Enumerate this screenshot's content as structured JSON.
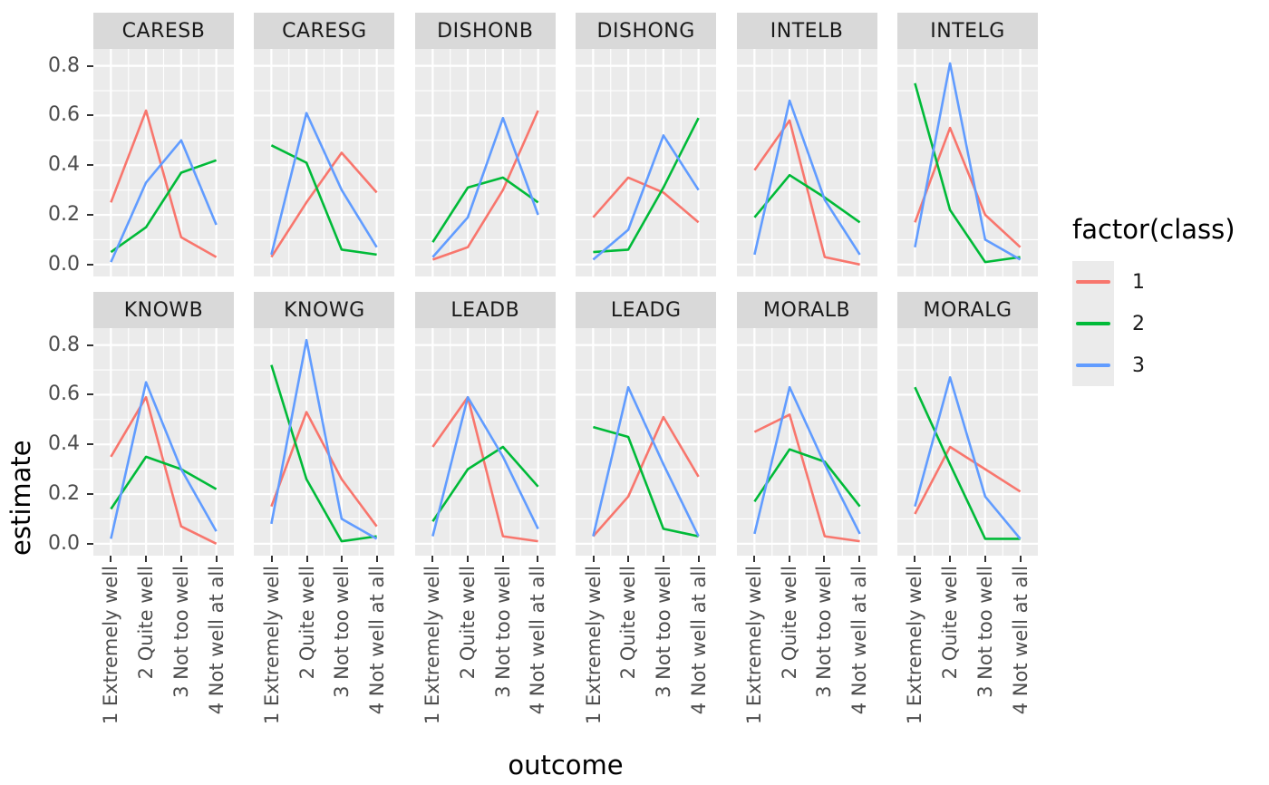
{
  "chart_data": {
    "type": "line",
    "title": "",
    "xlabel": "outcome",
    "ylabel": "estimate",
    "facet_grid": {
      "rows": 2,
      "cols": 6
    },
    "categories": [
      "1 Extremely well",
      "2 Quite well",
      "3 Not too well",
      "4 Not well at all"
    ],
    "yticks": [
      0.0,
      0.2,
      0.4,
      0.6,
      0.8
    ],
    "ytick_labels": [
      "0.0",
      "0.2",
      "0.4",
      "0.6",
      "0.8"
    ],
    "ylim": [
      -0.048,
      0.868
    ],
    "grid": true,
    "series": [
      {
        "name": "1",
        "color": "#F8766D"
      },
      {
        "name": "2",
        "color": "#00BA38"
      },
      {
        "name": "3",
        "color": "#619CFF"
      }
    ],
    "legend": {
      "title": "factor(class)",
      "position": "right",
      "entries": [
        {
          "label": "1",
          "color": "#F8766D"
        },
        {
          "label": "2",
          "color": "#00BA38"
        },
        {
          "label": "3",
          "color": "#619CFF"
        }
      ]
    },
    "facets": [
      {
        "name": "CARESB",
        "values": {
          "1": [
            0.25,
            0.62,
            0.11,
            0.03
          ],
          "2": [
            0.05,
            0.15,
            0.37,
            0.42
          ],
          "3": [
            0.01,
            0.33,
            0.5,
            0.16
          ]
        }
      },
      {
        "name": "CARESG",
        "values": {
          "1": [
            0.03,
            0.25,
            0.45,
            0.29
          ],
          "2": [
            0.48,
            0.41,
            0.06,
            0.04
          ],
          "3": [
            0.04,
            0.61,
            0.3,
            0.07
          ]
        }
      },
      {
        "name": "DISHONB",
        "values": {
          "1": [
            0.02,
            0.07,
            0.3,
            0.62
          ],
          "2": [
            0.09,
            0.31,
            0.35,
            0.25
          ],
          "3": [
            0.03,
            0.19,
            0.59,
            0.2
          ]
        }
      },
      {
        "name": "DISHONG",
        "values": {
          "1": [
            0.19,
            0.35,
            0.29,
            0.17
          ],
          "2": [
            0.05,
            0.06,
            0.31,
            0.59
          ],
          "3": [
            0.02,
            0.14,
            0.52,
            0.3
          ]
        }
      },
      {
        "name": "INTELB",
        "values": {
          "1": [
            0.38,
            0.58,
            0.03,
            0.0
          ],
          "2": [
            0.19,
            0.36,
            0.27,
            0.17
          ],
          "3": [
            0.04,
            0.66,
            0.26,
            0.04
          ]
        }
      },
      {
        "name": "INTELG",
        "values": {
          "1": [
            0.17,
            0.55,
            0.2,
            0.07
          ],
          "2": [
            0.73,
            0.22,
            0.01,
            0.03
          ],
          "3": [
            0.07,
            0.81,
            0.1,
            0.02
          ]
        }
      },
      {
        "name": "KNOWB",
        "values": {
          "1": [
            0.35,
            0.59,
            0.07,
            0.0
          ],
          "2": [
            0.14,
            0.35,
            0.3,
            0.22
          ],
          "3": [
            0.02,
            0.65,
            0.3,
            0.05
          ]
        }
      },
      {
        "name": "KNOWG",
        "values": {
          "1": [
            0.15,
            0.53,
            0.26,
            0.07
          ],
          "2": [
            0.72,
            0.26,
            0.01,
            0.03
          ],
          "3": [
            0.08,
            0.82,
            0.1,
            0.02
          ]
        }
      },
      {
        "name": "LEADB",
        "values": {
          "1": [
            0.39,
            0.59,
            0.03,
            0.01
          ],
          "2": [
            0.09,
            0.3,
            0.39,
            0.23
          ],
          "3": [
            0.03,
            0.59,
            0.35,
            0.06
          ]
        }
      },
      {
        "name": "LEADG",
        "values": {
          "1": [
            0.03,
            0.19,
            0.51,
            0.27
          ],
          "2": [
            0.47,
            0.43,
            0.06,
            0.03
          ],
          "3": [
            0.03,
            0.63,
            0.32,
            0.03
          ]
        }
      },
      {
        "name": "MORALB",
        "values": {
          "1": [
            0.45,
            0.52,
            0.03,
            0.01
          ],
          "2": [
            0.17,
            0.38,
            0.33,
            0.15
          ],
          "3": [
            0.04,
            0.63,
            0.32,
            0.04
          ]
        }
      },
      {
        "name": "MORALG",
        "values": {
          "1": [
            0.12,
            0.39,
            0.3,
            0.21
          ],
          "2": [
            0.63,
            0.32,
            0.02,
            0.02
          ],
          "3": [
            0.15,
            0.67,
            0.19,
            0.02
          ]
        }
      }
    ]
  },
  "theme": {
    "panel_bg": "#EBEBEB",
    "strip_bg": "#D9D9D9",
    "grid_color": "#FFFFFF",
    "axis_text_color": "#4D4D4D",
    "strip_text_color": "#1A1A1A",
    "tick_color": "#333333",
    "title_color": "#000000"
  }
}
